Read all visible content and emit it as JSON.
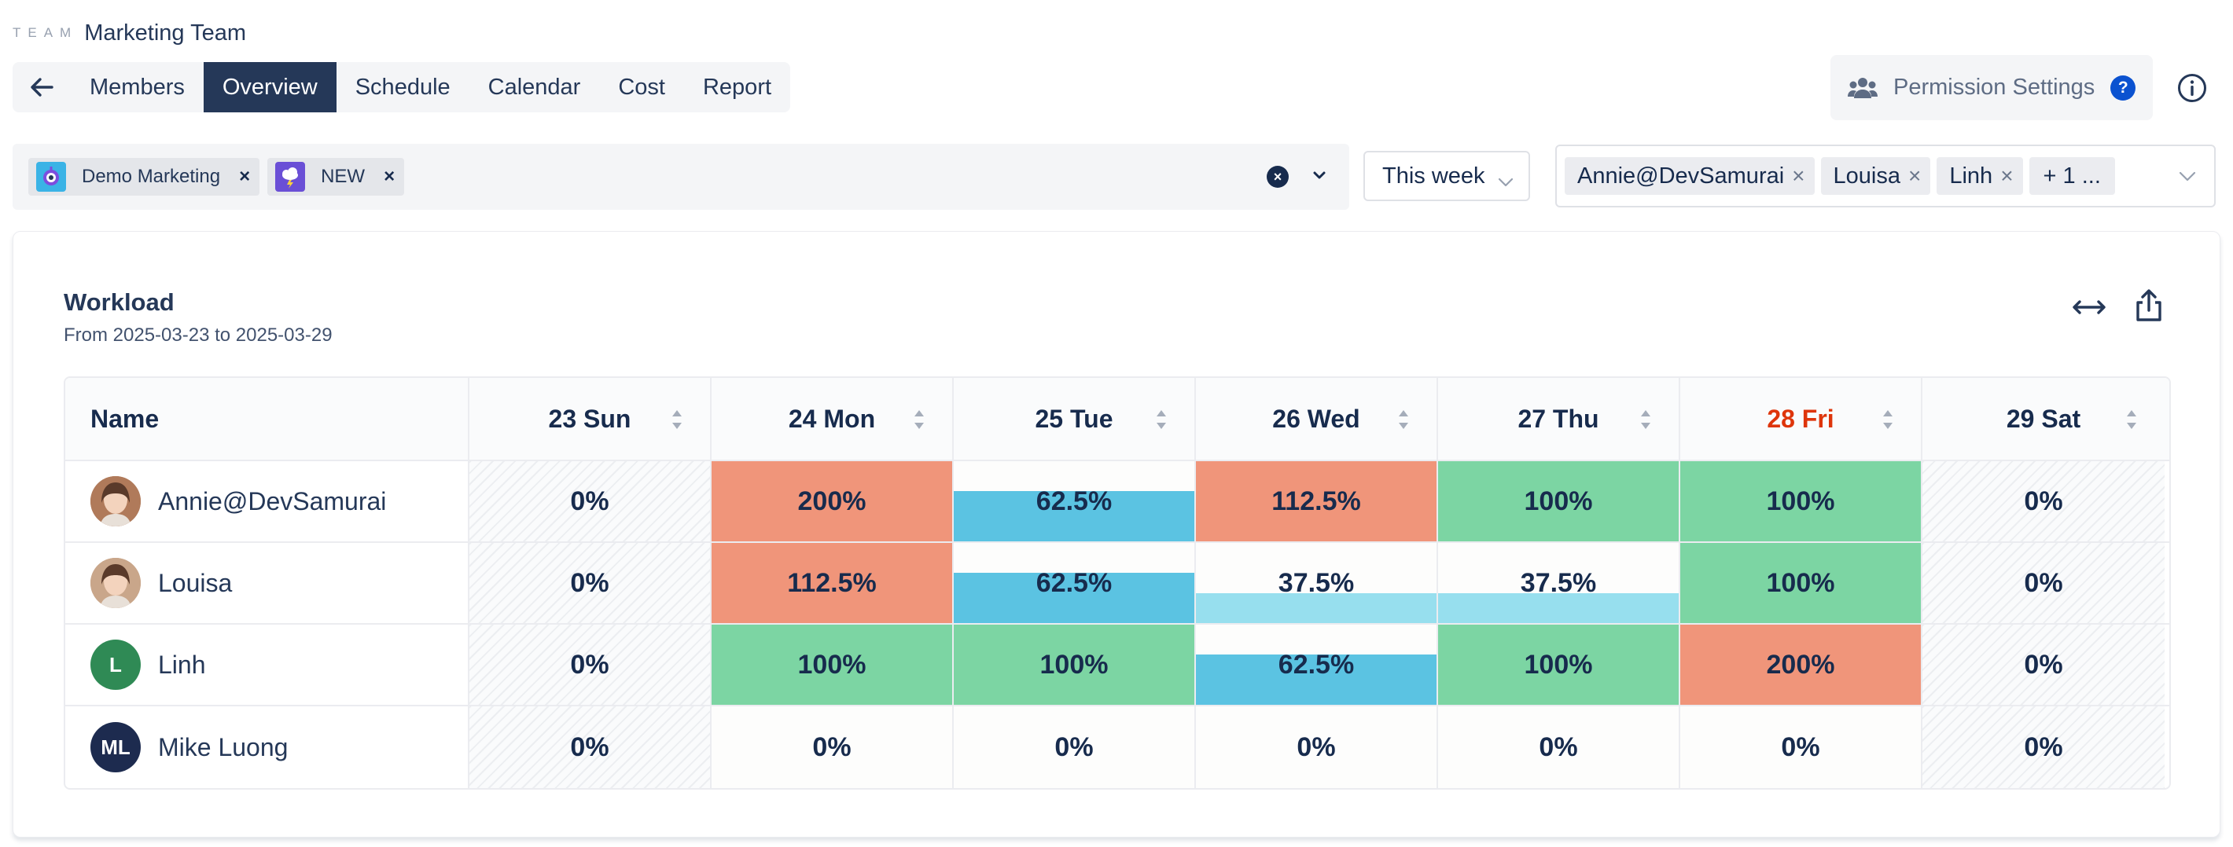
{
  "header": {
    "team_eyebrow": "TEAM",
    "team_name": "Marketing Team",
    "tabs": [
      {
        "label": "Members",
        "active": false
      },
      {
        "label": "Overview",
        "active": true
      },
      {
        "label": "Schedule",
        "active": false
      },
      {
        "label": "Calendar",
        "active": false
      },
      {
        "label": "Cost",
        "active": false
      },
      {
        "label": "Report",
        "active": false
      }
    ],
    "permission_label": "Permission Settings",
    "help_label": "?"
  },
  "filters": {
    "projects": [
      {
        "label": "Demo Marketing",
        "icon": "robot-icon"
      },
      {
        "label": "NEW",
        "icon": "cloud-icon"
      }
    ],
    "clear_label": "×",
    "chip_remove": "×",
    "period": "This week",
    "members": [
      "Annie@DevSamurai",
      "Louisa",
      "Linh"
    ],
    "member_remove": "×",
    "members_more": "+ 1 ..."
  },
  "workload": {
    "title": "Workload",
    "subtitle": "From 2025-03-23 to 2025-03-29",
    "name_header": "Name",
    "days": [
      {
        "label": "23 Sun",
        "weekend": true,
        "today": false
      },
      {
        "label": "24 Mon",
        "weekend": false,
        "today": false
      },
      {
        "label": "25 Tue",
        "weekend": false,
        "today": false
      },
      {
        "label": "26 Wed",
        "weekend": false,
        "today": false
      },
      {
        "label": "27 Thu",
        "weekend": false,
        "today": false
      },
      {
        "label": "28 Fri",
        "weekend": false,
        "today": true
      },
      {
        "label": "29 Sat",
        "weekend": true,
        "today": false
      }
    ],
    "rows": [
      {
        "name": "Annie@DevSamurai",
        "avatar": "",
        "avatar_color": "#b07a5a",
        "cells": [
          "0%",
          "200%",
          "62.5%",
          "112.5%",
          "100%",
          "100%",
          "0%"
        ]
      },
      {
        "name": "Louisa",
        "avatar": "",
        "avatar_color": "#c9a68a",
        "cells": [
          "0%",
          "112.5%",
          "62.5%",
          "37.5%",
          "37.5%",
          "100%",
          "0%"
        ]
      },
      {
        "name": "Linh",
        "avatar": "L",
        "avatar_color": "#2f8a55",
        "cells": [
          "0%",
          "100%",
          "100%",
          "62.5%",
          "100%",
          "200%",
          "0%"
        ]
      },
      {
        "name": "Mike Luong",
        "avatar": "ML",
        "avatar_color": "#1d2b4f",
        "cells": [
          "0%",
          "0%",
          "0%",
          "0%",
          "0%",
          "0%",
          "0%"
        ]
      }
    ]
  },
  "colors": {
    "over": "#f0957a",
    "full": "#7cd5a3",
    "partial": "#5bc3e2",
    "light": "#97dfee",
    "accent": "#253858",
    "today": "#de350b"
  }
}
